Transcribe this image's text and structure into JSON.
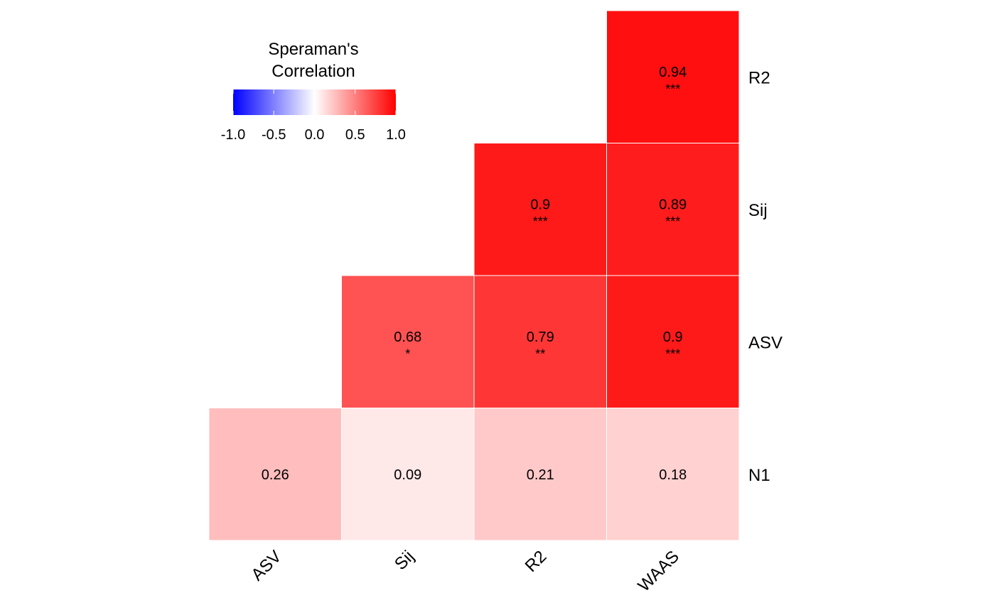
{
  "chart_data": {
    "type": "heatmap",
    "legend": {
      "title_lines": [
        "Speraman's",
        "Correlation"
      ],
      "ticks": [
        "-1.0",
        "-0.5",
        "0.0",
        "0.5",
        "1.0"
      ],
      "tick_values": [
        -1.0,
        -0.5,
        0.0,
        0.5,
        1.0
      ],
      "range": [
        -1,
        1
      ],
      "colors": {
        "low": "#0000ff",
        "mid": "#ffffff",
        "high": "#ff0000"
      },
      "placement": "top-left"
    },
    "x_labels": [
      "ASV",
      "Sij",
      "R2",
      "WAAS"
    ],
    "y_labels": [
      "R2",
      "Sij",
      "ASV",
      "N1"
    ],
    "cells": [
      {
        "x": "WAAS",
        "y": "R2",
        "value": 0.94,
        "label": "0.94",
        "sig": "***"
      },
      {
        "x": "R2",
        "y": "Sij",
        "value": 0.9,
        "label": "0.9",
        "sig": "***"
      },
      {
        "x": "WAAS",
        "y": "Sij",
        "value": 0.89,
        "label": "0.89",
        "sig": "***"
      },
      {
        "x": "Sij",
        "y": "ASV",
        "value": 0.68,
        "label": "0.68",
        "sig": "*"
      },
      {
        "x": "R2",
        "y": "ASV",
        "value": 0.79,
        "label": "0.79",
        "sig": "**"
      },
      {
        "x": "WAAS",
        "y": "ASV",
        "value": 0.9,
        "label": "0.9",
        "sig": "***"
      },
      {
        "x": "ASV",
        "y": "N1",
        "value": 0.26,
        "label": "0.26",
        "sig": ""
      },
      {
        "x": "Sij",
        "y": "N1",
        "value": 0.09,
        "label": "0.09",
        "sig": ""
      },
      {
        "x": "R2",
        "y": "N1",
        "value": 0.21,
        "label": "0.21",
        "sig": ""
      },
      {
        "x": "WAAS",
        "y": "N1",
        "value": 0.18,
        "label": "0.18",
        "sig": ""
      }
    ]
  }
}
